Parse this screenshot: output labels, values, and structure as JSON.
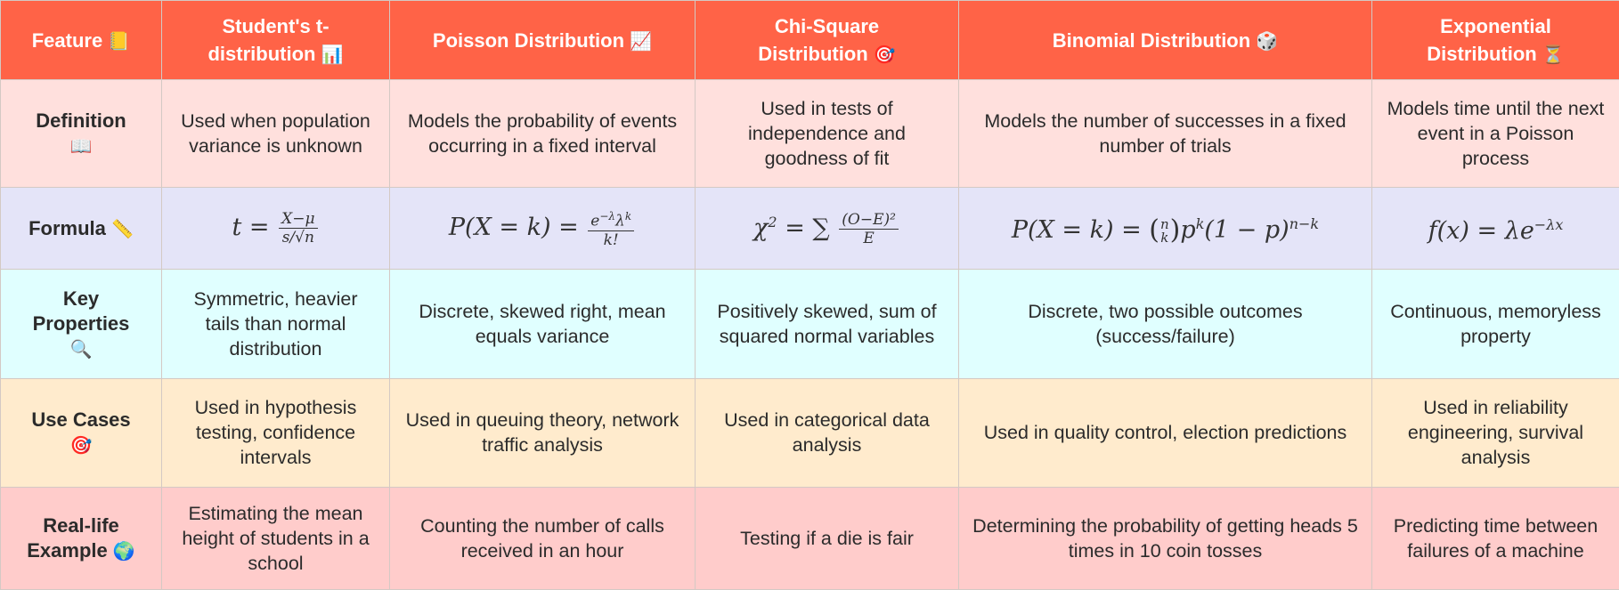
{
  "header": {
    "feature": "Feature",
    "feature_emoji": "📒",
    "col1_line1": "Student's t-",
    "col1_line2": "distribution",
    "col1_emoji": "📊",
    "col2": "Poisson Distribution",
    "col2_emoji": "📈",
    "col3_line1": "Chi-Square",
    "col3_line2": "Distribution",
    "col3_emoji": "🎯",
    "col4": "Binomial Distribution",
    "col4_emoji": "🎲",
    "col5_line1": "Exponential",
    "col5_line2": "Distribution",
    "col5_emoji": "⏳"
  },
  "rows": {
    "definition": {
      "label": "Definition",
      "emoji": "📖",
      "cells": [
        "Used when population variance is unknown",
        "Models the probability of events occurring in a fixed interval",
        "Used in tests of independence and goodness of fit",
        "Models the number of successes in a fixed number of trials",
        "Models time until the next event in a Poisson process"
      ]
    },
    "formula": {
      "label": "Formula",
      "emoji": "📏",
      "t_lhs": "t =",
      "t_num": "X−μ",
      "t_den": "s/√n",
      "p_lhs": "P(X = k) =",
      "p_num": "e⁻ˡᵏλᵏ",
      "p_num_base": "e",
      "p_num_exp": "−λ",
      "p_num_mid": "λ",
      "p_num_exp2": "k",
      "p_den": "k!",
      "c_lhs": "χ",
      "c_exp": "2",
      "c_eq": "= ∑",
      "c_num": "(O−E)²",
      "c_den": "E",
      "b_lhs": "P(X = k) =",
      "b_n": "n",
      "b_k": "k",
      "b_rest1": "p",
      "b_exp1": "k",
      "b_rest2": "(1 − p)",
      "b_exp2": "n−k",
      "e_lhs": "f(x) = λe",
      "e_exp": "−λx"
    },
    "properties": {
      "label": "Key Properties",
      "emoji": "🔍",
      "cells": [
        "Symmetric, heavier tails than normal distribution",
        "Discrete, skewed right, mean equals variance",
        "Positively skewed, sum of squared normal variables",
        "Discrete, two possible outcomes (success/failure)",
        "Continuous, memoryless property"
      ]
    },
    "use_cases": {
      "label": "Use Cases",
      "emoji": "🎯",
      "cells": [
        "Used in hypothesis testing, confidence intervals",
        "Used in queuing theory, network traffic analysis",
        "Used in categorical data analysis",
        "Used in quality control, election predictions",
        "Used in reliability engineering, survival analysis"
      ]
    },
    "example": {
      "label": "Real-life Example",
      "emoji": "🌍",
      "cells": [
        "Estimating the mean height of students in a school",
        "Counting the number of calls received in an hour",
        "Testing if a die is fair",
        "Determining the probability of getting heads 5 times in 10 coin tosses",
        "Predicting time between failures of a machine"
      ]
    }
  }
}
